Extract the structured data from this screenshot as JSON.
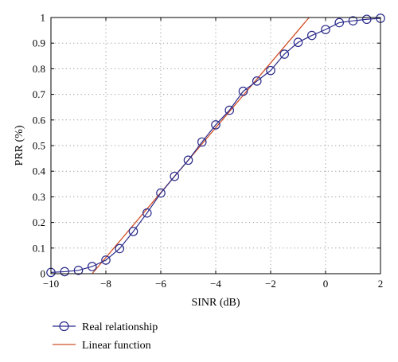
{
  "chart_data": {
    "type": "line",
    "xlabel": "SINR (dB)",
    "ylabel": "PRR (%)",
    "xlim": [
      -10,
      2
    ],
    "ylim": [
      0,
      1
    ],
    "xticks": [
      -10,
      -8,
      -6,
      -4,
      -2,
      0,
      2
    ],
    "xtick_labels": [
      "−10",
      "−8",
      "−6",
      "−4",
      "−2",
      "0",
      "2"
    ],
    "yticks": [
      0,
      0.1,
      0.2,
      0.3,
      0.4,
      0.5,
      0.6,
      0.7,
      0.8,
      0.9,
      1
    ],
    "ytick_labels": [
      "0",
      "0.1",
      "0.2",
      "0.3",
      "0.4",
      "0.5",
      "0.6",
      "0.7",
      "0.8",
      "0.9",
      "1"
    ],
    "grid": true,
    "legend_position": "below-left",
    "series": [
      {
        "name": "Real relationship",
        "color": "#2a2a8a",
        "marker": "circle",
        "x": [
          -10,
          -9.5,
          -9,
          -8.5,
          -8,
          -7.5,
          -7,
          -6.5,
          -6,
          -5.5,
          -5,
          -4.5,
          -4,
          -3.5,
          -3,
          -2.5,
          -2,
          -1.5,
          -1,
          -0.5,
          0,
          0.5,
          1,
          1.5,
          2
        ],
        "y": [
          0.005,
          0.008,
          0.013,
          0.028,
          0.053,
          0.098,
          0.165,
          0.237,
          0.315,
          0.38,
          0.443,
          0.514,
          0.581,
          0.638,
          0.712,
          0.752,
          0.793,
          0.857,
          0.903,
          0.93,
          0.953,
          0.98,
          0.987,
          0.993,
          0.997
        ]
      },
      {
        "name": "Linear function",
        "color": "#d2522a",
        "marker": "none",
        "x": [
          -8.5,
          -0.6
        ],
        "y": [
          0,
          1
        ]
      }
    ]
  }
}
